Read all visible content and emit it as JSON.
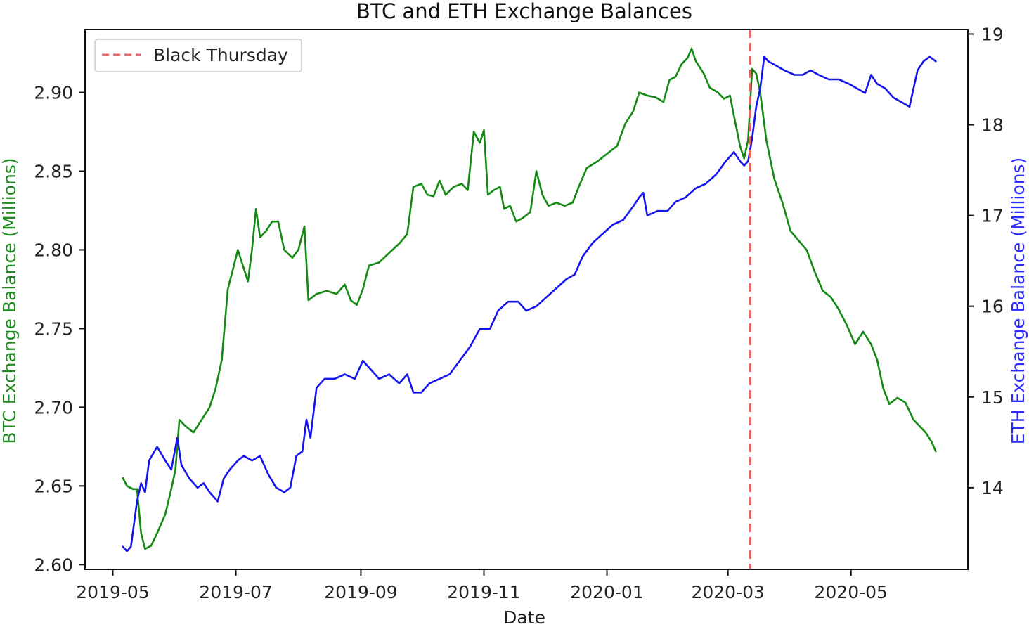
{
  "chart_data": {
    "type": "line",
    "title": "BTC and ETH Exchange Balances",
    "xlabel": "Date",
    "x_ticks": [
      "2019-05",
      "2019-07",
      "2019-09",
      "2019-11",
      "2020-01",
      "2020-03",
      "2020-05"
    ],
    "y_left": {
      "label": "BTC Exchange Balance (Millions)",
      "color": "#1f8a1f",
      "ylim": [
        2.597,
        2.94
      ],
      "ticks": [
        "2.60",
        "2.65",
        "2.70",
        "2.75",
        "2.80",
        "2.85",
        "2.90"
      ]
    },
    "y_right": {
      "label": "ETH Exchange Balance (Millions)",
      "color": "#2b2bff",
      "ylim": [
        13.1,
        19.05
      ],
      "ticks": [
        "14",
        "15",
        "16",
        "17",
        "18",
        "19"
      ]
    },
    "legend": {
      "placement": "top-left",
      "entries": [
        "Black Thursday"
      ]
    },
    "event": {
      "name": "Black Thursday",
      "date": "2020-03-12",
      "color": "#f06060",
      "style": "dashed"
    },
    "series": [
      {
        "axis": "left",
        "color": "#138a13",
        "points": [
          [
            "2019-05-06",
            2.655
          ],
          [
            "2019-05-08",
            2.65
          ],
          [
            "2019-05-11",
            2.648
          ],
          [
            "2019-05-13",
            2.648
          ],
          [
            "2019-05-15",
            2.62
          ],
          [
            "2019-05-17",
            2.61
          ],
          [
            "2019-05-20",
            2.612
          ],
          [
            "2019-05-23",
            2.62
          ],
          [
            "2019-05-27",
            2.632
          ],
          [
            "2019-05-30",
            2.648
          ],
          [
            "2019-06-01",
            2.66
          ],
          [
            "2019-06-03",
            2.692
          ],
          [
            "2019-06-06",
            2.688
          ],
          [
            "2019-06-10",
            2.684
          ],
          [
            "2019-06-14",
            2.692
          ],
          [
            "2019-06-18",
            2.7
          ],
          [
            "2019-06-21",
            2.712
          ],
          [
            "2019-06-24",
            2.73
          ],
          [
            "2019-06-27",
            2.775
          ],
          [
            "2019-06-30",
            2.79
          ],
          [
            "2019-07-02",
            2.8
          ],
          [
            "2019-07-04",
            2.792
          ],
          [
            "2019-07-07",
            2.78
          ],
          [
            "2019-07-09",
            2.8
          ],
          [
            "2019-07-11",
            2.826
          ],
          [
            "2019-07-13",
            2.808
          ],
          [
            "2019-07-16",
            2.812
          ],
          [
            "2019-07-19",
            2.818
          ],
          [
            "2019-07-22",
            2.818
          ],
          [
            "2019-07-25",
            2.8
          ],
          [
            "2019-07-29",
            2.795
          ],
          [
            "2019-08-01",
            2.8
          ],
          [
            "2019-08-04",
            2.815
          ],
          [
            "2019-08-06",
            2.768
          ],
          [
            "2019-08-10",
            2.772
          ],
          [
            "2019-08-15",
            2.774
          ],
          [
            "2019-08-20",
            2.772
          ],
          [
            "2019-08-24",
            2.778
          ],
          [
            "2019-08-27",
            2.768
          ],
          [
            "2019-08-30",
            2.765
          ],
          [
            "2019-09-02",
            2.775
          ],
          [
            "2019-09-05",
            2.79
          ],
          [
            "2019-09-10",
            2.792
          ],
          [
            "2019-09-15",
            2.798
          ],
          [
            "2019-09-20",
            2.804
          ],
          [
            "2019-09-24",
            2.81
          ],
          [
            "2019-09-27",
            2.84
          ],
          [
            "2019-10-01",
            2.842
          ],
          [
            "2019-10-04",
            2.835
          ],
          [
            "2019-10-07",
            2.834
          ],
          [
            "2019-10-10",
            2.844
          ],
          [
            "2019-10-13",
            2.835
          ],
          [
            "2019-10-17",
            2.84
          ],
          [
            "2019-10-21",
            2.842
          ],
          [
            "2019-10-24",
            2.838
          ],
          [
            "2019-10-27",
            2.875
          ],
          [
            "2019-10-30",
            2.868
          ],
          [
            "2019-11-01",
            2.876
          ],
          [
            "2019-11-03",
            2.835
          ],
          [
            "2019-11-06",
            2.838
          ],
          [
            "2019-11-09",
            2.84
          ],
          [
            "2019-11-11",
            2.826
          ],
          [
            "2019-11-14",
            2.828
          ],
          [
            "2019-11-17",
            2.818
          ],
          [
            "2019-11-20",
            2.82
          ],
          [
            "2019-11-24",
            2.824
          ],
          [
            "2019-11-27",
            2.85
          ],
          [
            "2019-11-30",
            2.835
          ],
          [
            "2019-12-03",
            2.828
          ],
          [
            "2019-12-07",
            2.83
          ],
          [
            "2019-12-11",
            2.828
          ],
          [
            "2019-12-15",
            2.83
          ],
          [
            "2019-12-18",
            2.84
          ],
          [
            "2019-12-22",
            2.852
          ],
          [
            "2019-12-27",
            2.856
          ],
          [
            "2020-01-02",
            2.862
          ],
          [
            "2020-01-06",
            2.866
          ],
          [
            "2020-01-10",
            2.88
          ],
          [
            "2020-01-14",
            2.888
          ],
          [
            "2020-01-17",
            2.9
          ],
          [
            "2020-01-21",
            2.898
          ],
          [
            "2020-01-25",
            2.897
          ],
          [
            "2020-01-29",
            2.894
          ],
          [
            "2020-02-01",
            2.908
          ],
          [
            "2020-02-04",
            2.91
          ],
          [
            "2020-02-07",
            2.918
          ],
          [
            "2020-02-10",
            2.922
          ],
          [
            "2020-02-12",
            2.928
          ],
          [
            "2020-02-14",
            2.92
          ],
          [
            "2020-02-18",
            2.912
          ],
          [
            "2020-02-21",
            2.903
          ],
          [
            "2020-02-25",
            2.9
          ],
          [
            "2020-02-28",
            2.896
          ],
          [
            "2020-03-02",
            2.898
          ],
          [
            "2020-03-04",
            2.885
          ],
          [
            "2020-03-07",
            2.866
          ],
          [
            "2020-03-09",
            2.858
          ],
          [
            "2020-03-11",
            2.87
          ],
          [
            "2020-03-13",
            2.915
          ],
          [
            "2020-03-15",
            2.912
          ],
          [
            "2020-03-17",
            2.9
          ],
          [
            "2020-03-20",
            2.87
          ],
          [
            "2020-03-24",
            2.845
          ],
          [
            "2020-03-28",
            2.83
          ],
          [
            "2020-04-01",
            2.812
          ],
          [
            "2020-04-05",
            2.806
          ],
          [
            "2020-04-09",
            2.8
          ],
          [
            "2020-04-13",
            2.786
          ],
          [
            "2020-04-17",
            2.774
          ],
          [
            "2020-04-21",
            2.77
          ],
          [
            "2020-04-25",
            2.762
          ],
          [
            "2020-04-29",
            2.752
          ],
          [
            "2020-05-03",
            2.74
          ],
          [
            "2020-05-07",
            2.748
          ],
          [
            "2020-05-11",
            2.74
          ],
          [
            "2020-05-14",
            2.73
          ],
          [
            "2020-05-17",
            2.712
          ],
          [
            "2020-05-20",
            2.702
          ],
          [
            "2020-05-24",
            2.706
          ],
          [
            "2020-05-28",
            2.703
          ],
          [
            "2020-06-01",
            2.692
          ],
          [
            "2020-06-04",
            2.688
          ],
          [
            "2020-06-07",
            2.684
          ],
          [
            "2020-06-10",
            2.678
          ],
          [
            "2020-06-12",
            2.672
          ]
        ]
      },
      {
        "axis": "right",
        "color": "#1414ee",
        "points": [
          [
            "2019-05-06",
            13.35
          ],
          [
            "2019-05-08",
            13.3
          ],
          [
            "2019-05-10",
            13.35
          ],
          [
            "2019-05-13",
            13.85
          ],
          [
            "2019-05-15",
            14.05
          ],
          [
            "2019-05-17",
            13.95
          ],
          [
            "2019-05-19",
            14.3
          ],
          [
            "2019-05-23",
            14.45
          ],
          [
            "2019-05-27",
            14.3
          ],
          [
            "2019-05-30",
            14.2
          ],
          [
            "2019-06-02",
            14.55
          ],
          [
            "2019-06-04",
            14.25
          ],
          [
            "2019-06-08",
            14.1
          ],
          [
            "2019-06-12",
            14.0
          ],
          [
            "2019-06-15",
            14.05
          ],
          [
            "2019-06-18",
            13.95
          ],
          [
            "2019-06-22",
            13.85
          ],
          [
            "2019-06-25",
            14.1
          ],
          [
            "2019-06-28",
            14.2
          ],
          [
            "2019-07-02",
            14.3
          ],
          [
            "2019-07-05",
            14.35
          ],
          [
            "2019-07-09",
            14.3
          ],
          [
            "2019-07-13",
            14.35
          ],
          [
            "2019-07-17",
            14.15
          ],
          [
            "2019-07-21",
            14.0
          ],
          [
            "2019-07-25",
            13.95
          ],
          [
            "2019-07-28",
            14.0
          ],
          [
            "2019-07-31",
            14.35
          ],
          [
            "2019-08-03",
            14.4
          ],
          [
            "2019-08-05",
            14.75
          ],
          [
            "2019-08-07",
            14.55
          ],
          [
            "2019-08-10",
            15.1
          ],
          [
            "2019-08-14",
            15.2
          ],
          [
            "2019-08-19",
            15.2
          ],
          [
            "2019-08-24",
            15.25
          ],
          [
            "2019-08-29",
            15.2
          ],
          [
            "2019-09-02",
            15.4
          ],
          [
            "2019-09-06",
            15.3
          ],
          [
            "2019-09-10",
            15.2
          ],
          [
            "2019-09-15",
            15.25
          ],
          [
            "2019-09-20",
            15.15
          ],
          [
            "2019-09-24",
            15.25
          ],
          [
            "2019-09-27",
            15.05
          ],
          [
            "2019-10-01",
            15.05
          ],
          [
            "2019-10-05",
            15.15
          ],
          [
            "2019-10-10",
            15.2
          ],
          [
            "2019-10-15",
            15.25
          ],
          [
            "2019-10-20",
            15.4
          ],
          [
            "2019-10-25",
            15.55
          ],
          [
            "2019-10-30",
            15.75
          ],
          [
            "2019-11-04",
            15.75
          ],
          [
            "2019-11-08",
            15.95
          ],
          [
            "2019-11-13",
            16.05
          ],
          [
            "2019-11-18",
            16.05
          ],
          [
            "2019-11-22",
            15.95
          ],
          [
            "2019-11-27",
            16.0
          ],
          [
            "2019-12-02",
            16.1
          ],
          [
            "2019-12-07",
            16.2
          ],
          [
            "2019-12-12",
            16.3
          ],
          [
            "2019-12-16",
            16.35
          ],
          [
            "2019-12-20",
            16.55
          ],
          [
            "2019-12-25",
            16.7
          ],
          [
            "2019-12-30",
            16.8
          ],
          [
            "2020-01-04",
            16.9
          ],
          [
            "2020-01-09",
            16.95
          ],
          [
            "2020-01-14",
            17.1
          ],
          [
            "2020-01-17",
            17.2
          ],
          [
            "2020-01-19",
            17.25
          ],
          [
            "2020-01-21",
            17.0
          ],
          [
            "2020-01-26",
            17.05
          ],
          [
            "2020-01-31",
            17.05
          ],
          [
            "2020-02-04",
            17.15
          ],
          [
            "2020-02-09",
            17.2
          ],
          [
            "2020-02-14",
            17.3
          ],
          [
            "2020-02-19",
            17.35
          ],
          [
            "2020-02-24",
            17.45
          ],
          [
            "2020-02-29",
            17.6
          ],
          [
            "2020-03-04",
            17.7
          ],
          [
            "2020-03-07",
            17.6
          ],
          [
            "2020-03-09",
            17.55
          ],
          [
            "2020-03-11",
            17.6
          ],
          [
            "2020-03-13",
            17.85
          ],
          [
            "2020-03-15",
            18.2
          ],
          [
            "2020-03-17",
            18.4
          ],
          [
            "2020-03-19",
            18.75
          ],
          [
            "2020-03-21",
            18.7
          ],
          [
            "2020-03-25",
            18.65
          ],
          [
            "2020-03-29",
            18.6
          ],
          [
            "2020-04-03",
            18.55
          ],
          [
            "2020-04-07",
            18.55
          ],
          [
            "2020-04-11",
            18.6
          ],
          [
            "2020-04-15",
            18.55
          ],
          [
            "2020-04-20",
            18.5
          ],
          [
            "2020-04-25",
            18.5
          ],
          [
            "2020-04-30",
            18.45
          ],
          [
            "2020-05-04",
            18.4
          ],
          [
            "2020-05-08",
            18.35
          ],
          [
            "2020-05-11",
            18.55
          ],
          [
            "2020-05-14",
            18.45
          ],
          [
            "2020-05-18",
            18.4
          ],
          [
            "2020-05-22",
            18.3
          ],
          [
            "2020-05-26",
            18.25
          ],
          [
            "2020-05-30",
            18.2
          ],
          [
            "2020-06-01",
            18.4
          ],
          [
            "2020-06-03",
            18.6
          ],
          [
            "2020-06-06",
            18.7
          ],
          [
            "2020-06-09",
            18.75
          ],
          [
            "2020-06-12",
            18.7
          ]
        ]
      }
    ]
  }
}
